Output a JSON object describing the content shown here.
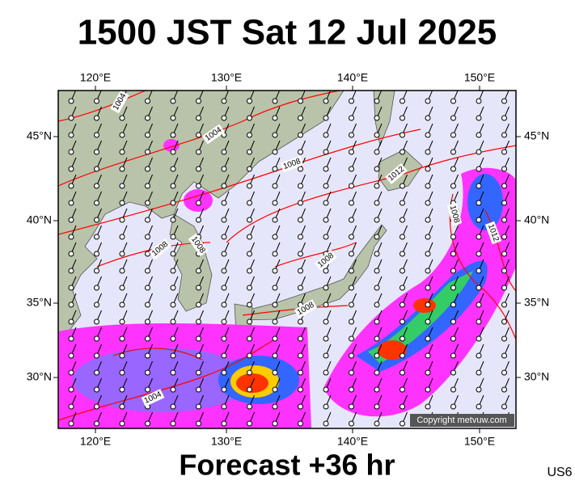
{
  "title": "1500 JST Sat 12 Jul 2025",
  "footer": "Forecast +36 hr",
  "region_code": "US6",
  "copyright": "Copyright metvuw.com",
  "lon_labels": [
    "120°E",
    "130°E",
    "140°E",
    "150°E"
  ],
  "lat_labels": [
    "45°N",
    "40°N",
    "35°N",
    "30°N"
  ],
  "isobar_labels": [
    "1004",
    "1004",
    "1008",
    "1012",
    "1008",
    "1012",
    "1008",
    "1008",
    "1008",
    "1008",
    "1004"
  ]
}
